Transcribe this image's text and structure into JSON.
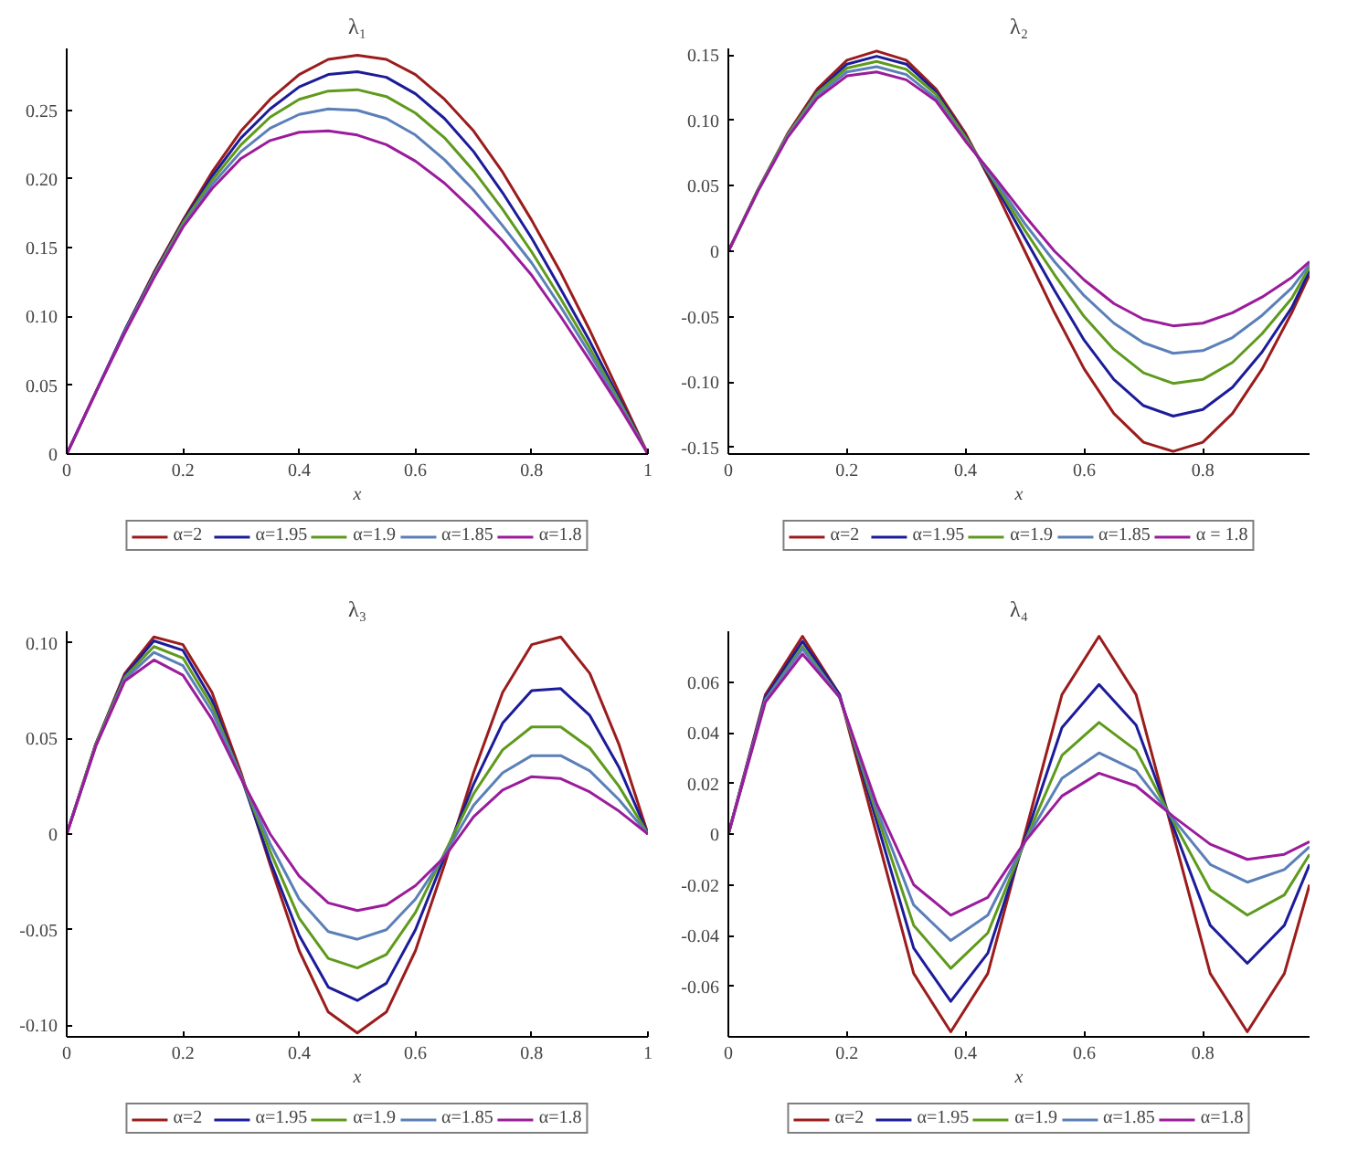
{
  "chart_data": [
    {
      "type": "line",
      "title": "λ₁",
      "xlabel": "x",
      "legend": "bottom",
      "grid": false,
      "x": [
        0,
        0.05,
        0.1,
        0.15,
        0.2,
        0.25,
        0.3,
        0.35,
        0.4,
        0.45,
        0.5,
        0.55,
        0.6,
        0.65,
        0.7,
        0.75,
        0.8,
        0.85,
        0.9,
        0.95,
        1
      ],
      "xlim": [
        0,
        1
      ],
      "ylim": [
        0,
        0.295
      ],
      "xticks": [
        0,
        0.2,
        0.4,
        0.6,
        0.8,
        1
      ],
      "yticks": [
        0,
        0.05,
        {
          "value": 0.1,
          "label": "0.10"
        },
        0.15,
        {
          "value": 0.2,
          "label": "0.20"
        },
        0.25
      ],
      "series": [
        {
          "name": "α=2",
          "color": "#9b1c1c",
          "values": [
            0,
            0.045,
            0.09,
            0.132,
            0.17,
            0.205,
            0.235,
            0.258,
            0.276,
            0.287,
            0.29,
            0.287,
            0.276,
            0.258,
            0.235,
            0.205,
            0.17,
            0.132,
            0.09,
            0.045,
            0
          ]
        },
        {
          "name": "α=1.95",
          "color": "#1c1c9b",
          "values": [
            0,
            0.045,
            0.09,
            0.131,
            0.169,
            0.202,
            0.23,
            0.251,
            0.267,
            0.276,
            0.278,
            0.274,
            0.262,
            0.244,
            0.22,
            0.19,
            0.157,
            0.12,
            0.082,
            0.041,
            0
          ]
        },
        {
          "name": "α=1.9",
          "color": "#5e9a1c",
          "values": [
            null,
            null,
            0.089,
            0.13,
            0.168,
            0.199,
            0.225,
            0.245,
            0.258,
            0.264,
            0.265,
            0.26,
            0.248,
            0.23,
            0.206,
            0.178,
            0.147,
            0.113,
            0.077,
            0.039,
            0
          ]
        },
        {
          "name": "α=1.85",
          "color": "#5b7fb8",
          "values": [
            0,
            0.045,
            0.089,
            0.129,
            0.166,
            0.196,
            0.22,
            0.237,
            0.247,
            0.251,
            0.25,
            0.244,
            0.232,
            0.214,
            0.192,
            0.166,
            0.139,
            0.107,
            0.073,
            0.037,
            0
          ]
        },
        {
          "name": "α=1.8",
          "color": "#9b1c9b",
          "values": [
            0,
            0.045,
            0.088,
            0.128,
            0.165,
            0.193,
            0.215,
            0.228,
            0.234,
            0.235,
            0.232,
            0.225,
            0.213,
            0.197,
            0.177,
            0.155,
            0.13,
            0.1,
            0.068,
            0.035,
            0
          ]
        }
      ]
    },
    {
      "type": "line",
      "title": "λ₂",
      "xlabel": "x",
      "legend": "bottom",
      "grid": false,
      "x": [
        0,
        0.05,
        0.1,
        0.15,
        0.2,
        0.25,
        0.3,
        0.35,
        0.4,
        0.45,
        0.5,
        0.55,
        0.6,
        0.65,
        0.7,
        0.75,
        0.8,
        0.85,
        0.9,
        0.95,
        0.98
      ],
      "xlim": [
        0,
        0.98
      ],
      "ylim": [
        -0.155,
        0.155
      ],
      "xticks": [
        0,
        0.2,
        0.4,
        0.6,
        0.8
      ],
      "yticks": [
        -0.15,
        {
          "value": -0.1,
          "label": "-0.10"
        },
        -0.05,
        0,
        0.05,
        {
          "value": 0.1,
          "label": "0.10"
        },
        0.15
      ],
      "series": [
        {
          "name": "α=2",
          "color": "#9b1c1c",
          "values": [
            0,
            0.047,
            0.09,
            0.124,
            0.146,
            0.153,
            0.146,
            0.124,
            0.09,
            0.047,
            0,
            -0.047,
            -0.09,
            -0.124,
            -0.146,
            -0.153,
            -0.146,
            -0.124,
            -0.09,
            -0.047,
            -0.018
          ]
        },
        {
          "name": "α=1.95",
          "color": "#1c1c9b",
          "values": [
            0,
            0.047,
            0.089,
            0.122,
            0.143,
            0.149,
            0.143,
            0.122,
            0.088,
            0.05,
            0.01,
            -0.03,
            -0.068,
            -0.098,
            -0.118,
            -0.126,
            -0.121,
            -0.104,
            -0.077,
            -0.043,
            -0.015
          ]
        },
        {
          "name": "α=1.9",
          "color": "#5e9a1c",
          "values": [
            0,
            0.047,
            0.089,
            0.121,
            0.14,
            0.145,
            0.139,
            0.12,
            0.087,
            0.052,
            0.016,
            -0.018,
            -0.05,
            -0.075,
            -0.093,
            -0.101,
            -0.098,
            -0.085,
            -0.063,
            -0.036,
            -0.012
          ]
        },
        {
          "name": "α=1.85",
          "color": "#5b7fb8",
          "values": [
            0,
            0.046,
            0.088,
            0.119,
            0.137,
            0.141,
            0.135,
            0.117,
            0.085,
            0.054,
            0.021,
            -0.008,
            -0.034,
            -0.055,
            -0.07,
            -0.078,
            -0.076,
            -0.066,
            -0.049,
            -0.028,
            -0.01
          ]
        },
        {
          "name": "α = 1.8",
          "color": "#9b1c9b",
          "values": [
            0,
            0.046,
            0.087,
            0.117,
            0.134,
            0.137,
            0.131,
            0.115,
            0.084,
            0.056,
            0.027,
            0.0,
            -0.022,
            -0.04,
            -0.052,
            -0.057,
            -0.055,
            -0.047,
            -0.035,
            -0.02,
            -0.008
          ]
        }
      ]
    },
    {
      "type": "line",
      "title": "λ₃",
      "xlabel": "x",
      "legend": "bottom",
      "grid": false,
      "x": [
        0,
        0.05,
        0.1,
        0.15,
        0.2,
        0.25,
        0.3,
        0.35,
        0.4,
        0.45,
        0.5,
        0.55,
        0.6,
        0.65,
        0.7,
        0.75,
        0.8,
        0.85,
        0.9,
        0.95,
        1
      ],
      "xlim": [
        0,
        1
      ],
      "ylim": [
        -0.106,
        0.106
      ],
      "xticks": [
        0,
        0.2,
        0.4,
        0.6,
        0.8,
        1
      ],
      "yticks": [
        {
          "value": -0.1,
          "label": "-0.10"
        },
        -0.05,
        0,
        0.05,
        {
          "value": 0.1,
          "label": "0.10"
        }
      ],
      "series": [
        {
          "name": "α=2",
          "color": "#9b1c1c",
          "values": [
            0,
            0.047,
            0.084,
            0.103,
            0.099,
            0.074,
            0.032,
            -0.016,
            -0.061,
            -0.093,
            -0.104,
            -0.093,
            -0.061,
            -0.016,
            0.032,
            0.074,
            0.099,
            0.103,
            0.084,
            0.047,
            0
          ]
        },
        {
          "name": "α=1.95",
          "color": "#1c1c9b",
          "values": [
            0,
            0.047,
            0.083,
            0.101,
            0.096,
            0.07,
            0.03,
            -0.014,
            -0.053,
            -0.08,
            -0.087,
            -0.078,
            -0.05,
            -0.012,
            0.026,
            0.058,
            0.075,
            0.076,
            0.062,
            0.035,
            0
          ]
        },
        {
          "name": "α=1.9",
          "color": "#5e9a1c",
          "values": [
            0,
            0.047,
            0.082,
            0.098,
            0.092,
            0.067,
            0.03,
            -0.009,
            -0.044,
            -0.065,
            -0.07,
            -0.063,
            -0.041,
            -0.01,
            0.021,
            0.044,
            0.056,
            0.056,
            0.045,
            0.025,
            0
          ]
        },
        {
          "name": "α=1.85",
          "color": "#5b7fb8",
          "values": [
            0,
            0.046,
            0.081,
            0.095,
            0.088,
            0.064,
            0.03,
            -0.005,
            -0.034,
            -0.051,
            -0.055,
            -0.05,
            -0.034,
            -0.011,
            0.015,
            0.032,
            0.041,
            0.041,
            0.033,
            0.018,
            0
          ]
        },
        {
          "name": "α=1.8",
          "color": "#9b1c9b",
          "values": [
            0,
            0.046,
            0.08,
            0.091,
            0.083,
            0.06,
            0.029,
            0.0,
            -0.022,
            -0.036,
            -0.04,
            -0.037,
            -0.027,
            -0.012,
            0.009,
            0.023,
            0.03,
            0.029,
            0.022,
            0.012,
            0
          ]
        }
      ]
    },
    {
      "type": "line",
      "title": "λ₄",
      "xlabel": "x",
      "legend": "bottom",
      "grid": false,
      "x": [
        0,
        0.0625,
        0.125,
        0.1875,
        0.25,
        0.3125,
        0.375,
        0.4375,
        0.5,
        0.5625,
        0.625,
        0.6875,
        0.75,
        0.8125,
        0.875,
        0.9375,
        0.98
      ],
      "xlim": [
        0,
        0.98
      ],
      "ylim": [
        -0.08,
        0.08
      ],
      "xticks": [
        0,
        0.2,
        0.4,
        0.6,
        0.8
      ],
      "yticks": [
        -0.06,
        -0.04,
        -0.02,
        0,
        0.02,
        0.04,
        0.06
      ],
      "series": [
        {
          "name": "α=2",
          "color": "#9b1c1c",
          "values": [
            0,
            0.055,
            0.078,
            0.055,
            0,
            -0.055,
            -0.078,
            -0.055,
            0,
            0.055,
            0.078,
            0.055,
            0,
            -0.055,
            -0.078,
            -0.055,
            -0.02
          ]
        },
        {
          "name": "α=1.95",
          "color": "#1c1c9b",
          "values": [
            0,
            0.054,
            0.076,
            0.055,
            0.005,
            -0.045,
            -0.066,
            -0.047,
            -0.002,
            0.042,
            0.059,
            0.043,
            0.003,
            -0.036,
            -0.051,
            -0.036,
            -0.012
          ]
        },
        {
          "name": "α=1.9",
          "color": "#5e9a1c",
          "values": [
            0,
            0.053,
            0.074,
            0.054,
            0.008,
            -0.036,
            -0.053,
            -0.039,
            -0.003,
            0.031,
            0.044,
            0.033,
            0.005,
            -0.022,
            -0.032,
            -0.024,
            -0.008
          ]
        },
        {
          "name": "α=1.85",
          "color": "#5b7fb8",
          "values": [
            0,
            0.053,
            0.073,
            0.054,
            0.01,
            -0.028,
            -0.042,
            -0.032,
            -0.003,
            0.022,
            0.032,
            0.025,
            0.006,
            -0.012,
            -0.019,
            -0.014,
            -0.005
          ]
        },
        {
          "name": "α=1.8",
          "color": "#9b1c9b",
          "values": [
            0,
            0.052,
            0.071,
            0.054,
            0.012,
            -0.02,
            -0.032,
            -0.025,
            -0.003,
            0.015,
            0.024,
            0.019,
            0.007,
            -0.004,
            -0.01,
            -0.008,
            -0.003
          ]
        }
      ]
    }
  ]
}
